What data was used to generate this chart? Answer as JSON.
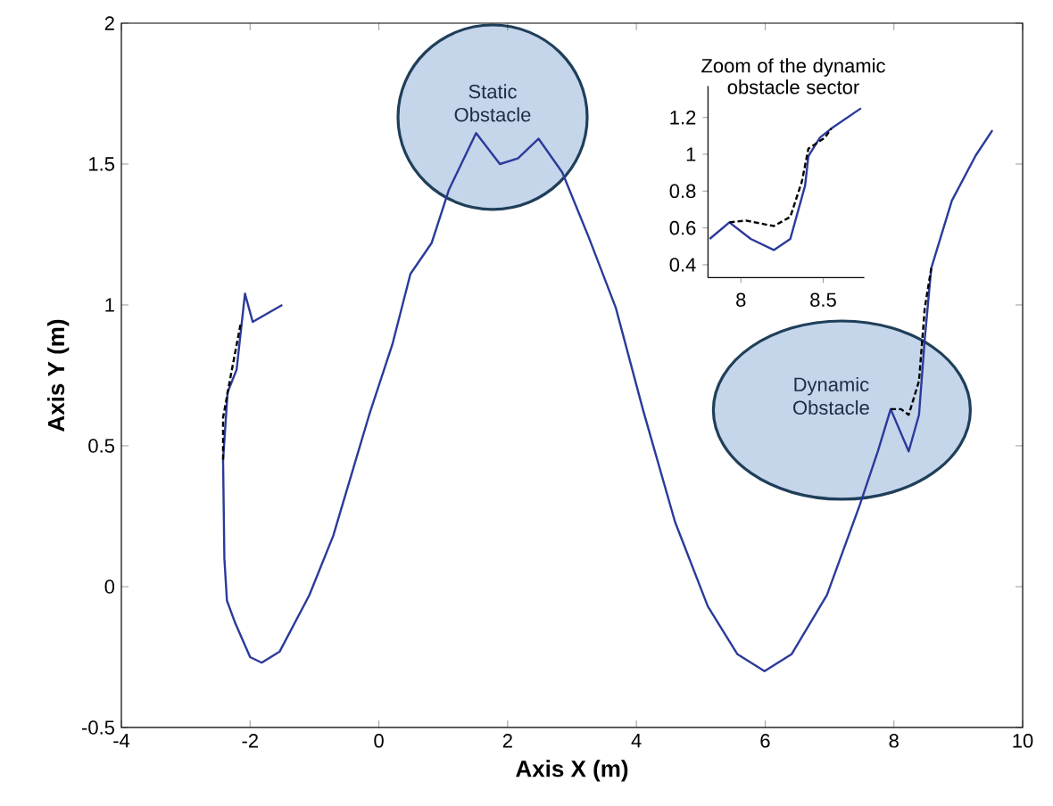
{
  "chart_data": [
    {
      "type": "line",
      "xlabel": "Axis X (m)",
      "ylabel": "Axis Y (m)",
      "xlim": [
        -4,
        10
      ],
      "ylim": [
        -0.5,
        2
      ],
      "xticks": [
        -4,
        -2,
        0,
        2,
        4,
        6,
        8,
        10
      ],
      "yticks": [
        -0.5,
        0,
        0.5,
        1,
        1.5,
        2
      ],
      "marker": "none",
      "grid": false,
      "annotations": [
        "Static Obstacle",
        "Dynamic Obstacle"
      ],
      "series": [
        {
          "color": "#000000",
          "line_style": "dashed",
          "x": [
            -2.15,
            -2.3,
            -2.42,
            -2.42
          ],
          "values": [
            0.93,
            0.75,
            0.6,
            0.45
          ]
        },
        {
          "color": "#000000",
          "line_style": "dashed",
          "x": [
            7.95,
            8.11,
            8.23,
            8.39,
            8.48,
            8.58
          ],
          "values": [
            0.63,
            0.63,
            0.61,
            0.73,
            0.99,
            1.13
          ]
        },
        {
          "color": "#2b3a9a",
          "line_style": "solid",
          "x": [
            -1.5,
            -1.96,
            -2.08,
            -2.21,
            -2.35,
            -2.42,
            -2.4,
            -2.36,
            -2.23,
            -2.0,
            -1.82,
            -1.54,
            -1.08,
            -0.71,
            -0.15,
            0.21,
            0.49,
            0.82,
            1.09,
            1.51,
            1.88,
            2.16,
            2.48,
            2.85,
            3.26,
            3.68,
            4.1,
            4.6,
            5.11,
            5.57,
            5.99,
            6.41,
            6.96,
            7.47,
            7.75,
            7.95,
            8.23,
            8.39,
            8.48,
            8.58,
            8.9,
            9.27,
            9.53
          ],
          "values": [
            1.0,
            0.94,
            1.04,
            0.77,
            0.69,
            0.45,
            0.1,
            -0.05,
            -0.13,
            -0.25,
            -0.27,
            -0.23,
            -0.03,
            0.18,
            0.61,
            0.86,
            1.11,
            1.22,
            1.41,
            1.61,
            1.5,
            1.52,
            1.59,
            1.47,
            1.24,
            0.99,
            0.63,
            0.23,
            -0.07,
            -0.24,
            -0.3,
            -0.24,
            -0.03,
            0.29,
            0.48,
            0.63,
            0.48,
            0.61,
            0.88,
            1.13,
            1.37,
            1.53,
            1.62
          ]
        }
      ]
    },
    {
      "type": "line",
      "title": "Zoom of the dynamic obstacle sector",
      "xlim": [
        7.8,
        8.75
      ],
      "ylim": [
        0.33,
        1.37
      ],
      "xticks": [
        8,
        8.5
      ],
      "yticks": [
        0.4,
        0.6,
        0.8,
        1,
        1.2
      ],
      "marker": "none",
      "grid": false,
      "series": [
        {
          "color": "#000000",
          "line_style": "dashed",
          "x": [
            7.93,
            8.03,
            8.2,
            8.3,
            8.37,
            8.41,
            8.51,
            8.55
          ],
          "values": [
            0.63,
            0.64,
            0.61,
            0.66,
            0.85,
            1.03,
            1.09,
            1.14
          ]
        },
        {
          "color": "#2b3a9a",
          "line_style": "solid",
          "x": [
            7.81,
            7.93,
            8.06,
            8.2,
            8.3,
            8.39,
            8.41,
            8.48,
            8.55,
            8.73
          ],
          "values": [
            0.54,
            0.63,
            0.54,
            0.48,
            0.54,
            0.83,
            0.99,
            1.09,
            1.14,
            1.25
          ]
        }
      ]
    }
  ]
}
